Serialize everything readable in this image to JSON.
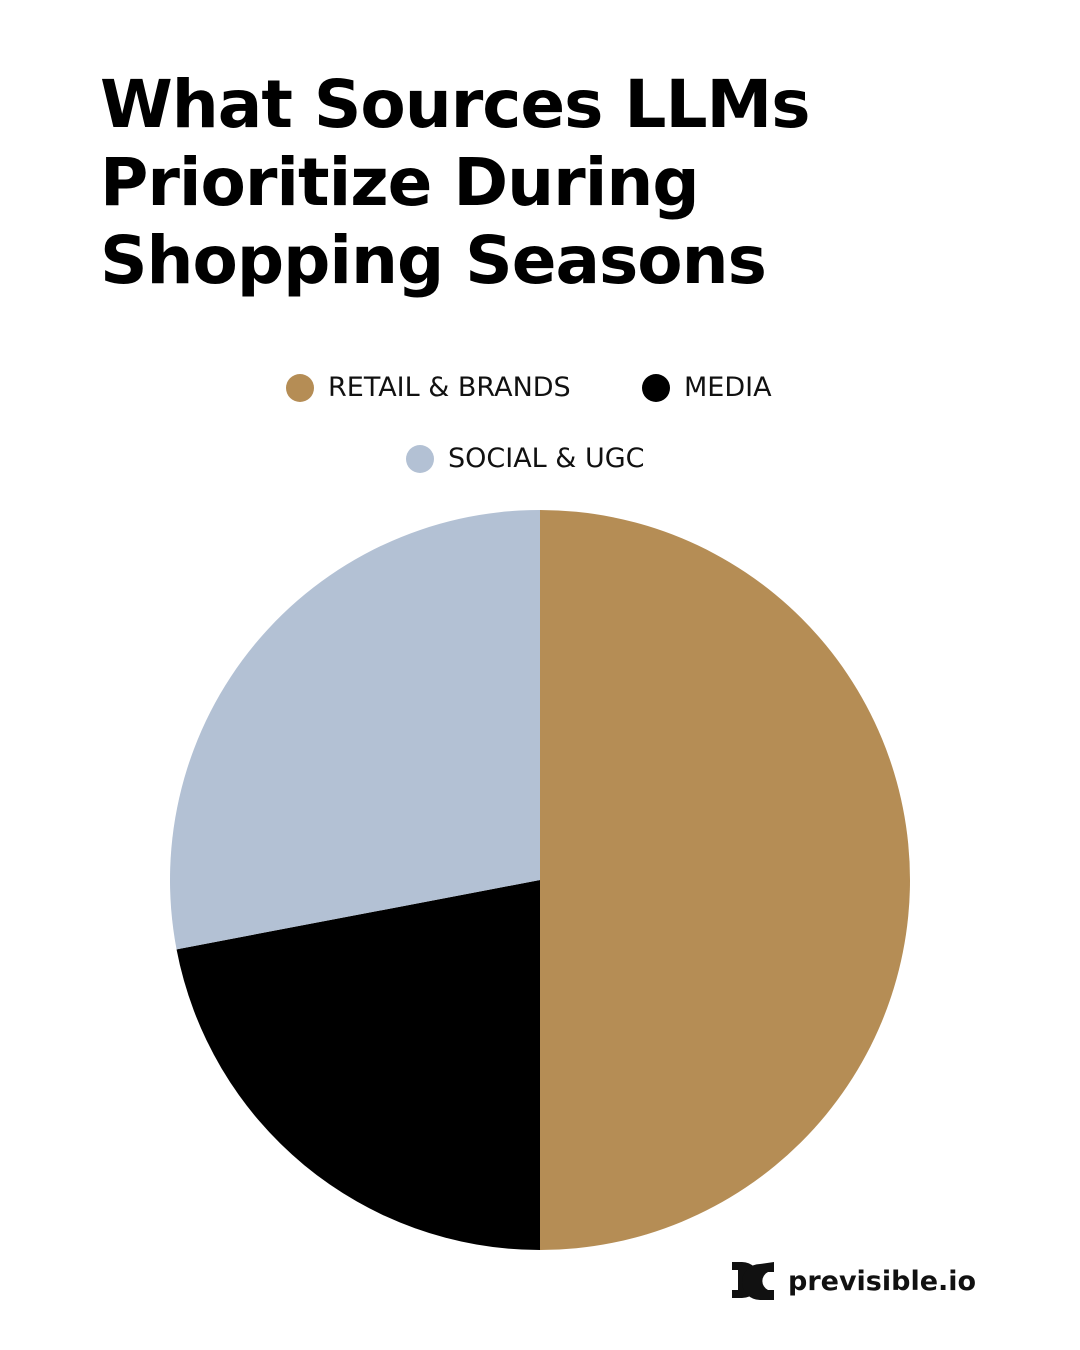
{
  "chart_data": {
    "type": "pie",
    "title": "What Sources LLMs Prioritize During Shopping Seasons",
    "legend_placement": "top",
    "start_angle": "top, clockwise",
    "slices": [
      {
        "label": "RETAIL & BRANDS",
        "value": 50,
        "color": "#b58d55"
      },
      {
        "label": "MEDIA",
        "value": 22,
        "color": "#000000"
      },
      {
        "label": "SOCIAL & UGC",
        "value": 28,
        "color": "#b3c1d4"
      }
    ]
  },
  "brand": {
    "logo_text": "previsible.io"
  }
}
